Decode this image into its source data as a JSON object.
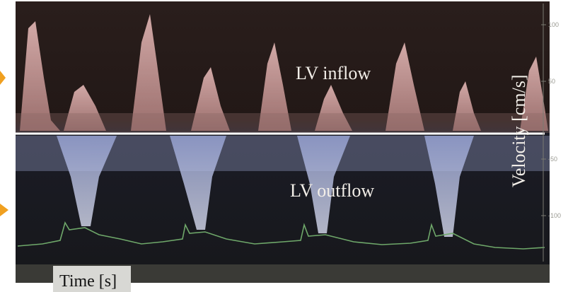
{
  "image": {
    "inflow_label": "LV inflow",
    "outflow_label": "LV outflow",
    "y_axis": {
      "title": "Velocity [cm/s]",
      "ticks": [
        "100",
        "50",
        "-50",
        "-100"
      ]
    },
    "x_axis": {
      "title": "Time [s]"
    }
  }
}
